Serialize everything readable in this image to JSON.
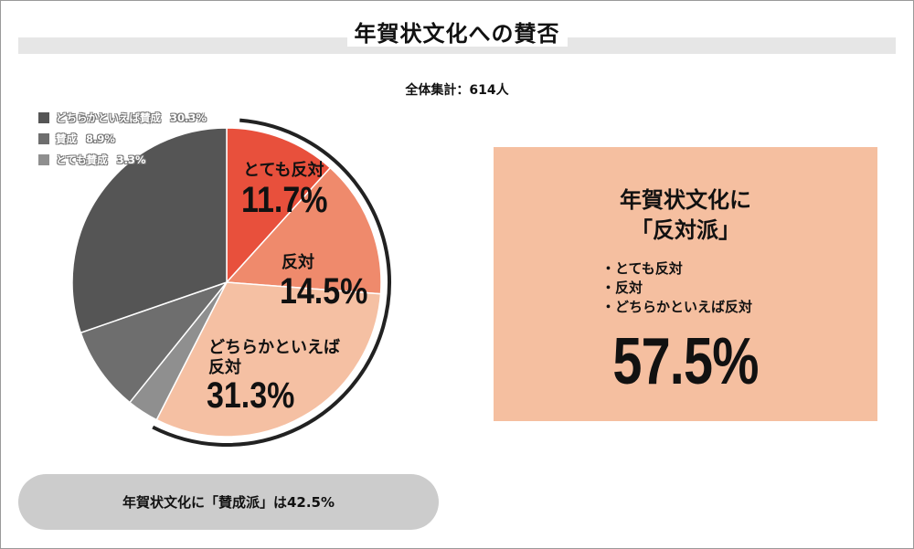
{
  "title": "年賀状文化への賛否",
  "total_label": "全体集計：614人",
  "callout": {
    "title_line1": "年賀状文化に",
    "title_line2": "「反対派」",
    "items": [
      "・とても反対",
      "・反対",
      "・どちらかといえば反対"
    ],
    "percent": "57.5%"
  },
  "summary": "年賀状文化に「賛成派」は42.5%",
  "colors": {
    "strongly_oppose": "#e8503c",
    "oppose": "#ef8a6c",
    "somewhat_oppose": "#f5c0a3",
    "somewhat_agree": "#555555",
    "agree": "#6e6e6e",
    "strongly_agree": "#8f8f8f",
    "callout_bg": "#f5bfa0",
    "arc": "#222222"
  },
  "chart_data": {
    "type": "pie",
    "title": "年賀状文化への賛否",
    "total": 614,
    "legend_position": "top-left",
    "slices": [
      {
        "label": "とても反対",
        "value": 11.7,
        "display": "11.7%",
        "color": "#e8503c"
      },
      {
        "label": "反対",
        "value": 14.5,
        "display": "14.5%",
        "color": "#ef8a6c"
      },
      {
        "label": "どちらかといえば反対",
        "value": 31.3,
        "display": "31.3%",
        "color": "#f5c0a3"
      },
      {
        "label": "とても賛成",
        "value": 3.3,
        "display": "3.3%",
        "color": "#8f8f8f"
      },
      {
        "label": "賛成",
        "value": 8.9,
        "display": "8.9%",
        "color": "#6e6e6e"
      },
      {
        "label": "どちらかといえば賛成",
        "value": 30.3,
        "display": "30.3%",
        "color": "#555555"
      }
    ],
    "legend": [
      {
        "label": "どちらかといえば賛成",
        "value": "30.3%",
        "color": "#555555"
      },
      {
        "label": "賛成",
        "value": "8.9%",
        "color": "#6e6e6e"
      },
      {
        "label": "とても賛成",
        "value": "3.3%",
        "color": "#8f8f8f"
      }
    ],
    "oppose_total": "57.5%",
    "agree_total": "42.5%"
  }
}
